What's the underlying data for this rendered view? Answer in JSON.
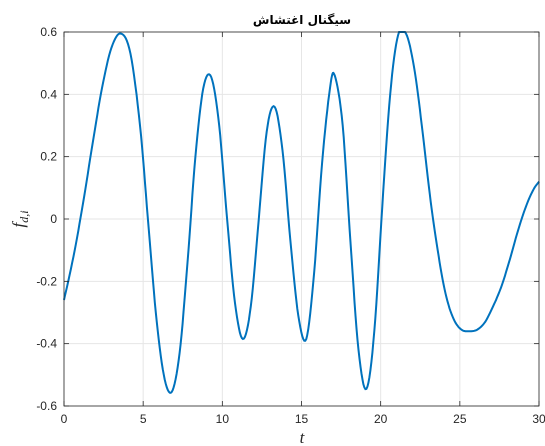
{
  "chart_data": {
    "type": "line",
    "title": "سیگنال اغتشاش",
    "xlabel": "t",
    "ylabel": "f",
    "ylabel_subscript": "d,i",
    "xlim": [
      0,
      30
    ],
    "ylim": [
      -0.6,
      0.6
    ],
    "xticks": [
      0,
      5,
      10,
      15,
      20,
      25,
      30
    ],
    "xtick_labels": [
      "0",
      "5",
      "10",
      "15",
      "20",
      "25",
      "30"
    ],
    "yticks": [
      -0.6,
      -0.4,
      -0.2,
      0,
      0.2,
      0.4,
      0.6
    ],
    "ytick_labels": [
      "-0.6",
      "-0.4",
      "-0.2",
      "0",
      "0.2",
      "0.4",
      "0.6"
    ],
    "grid": true,
    "series": [
      {
        "color": "#0072BD",
        "x": [
          0,
          0.6,
          1.2,
          1.8,
          2.4,
          3.0,
          3.6,
          4.2,
          4.8,
          5.3,
          5.8,
          6.3,
          6.8,
          7.3,
          7.8,
          8.3,
          8.8,
          9.3,
          9.8,
          10.3,
          10.8,
          11.3,
          11.8,
          12.3,
          12.8,
          13.3,
          13.8,
          14.3,
          14.8,
          15.3,
          15.8,
          16.3,
          16.8,
          17.1,
          17.6,
          18.1,
          18.6,
          19.1,
          19.6,
          20.1,
          20.6,
          21.1,
          21.6,
          22.1,
          22.6,
          23.1,
          23.6,
          24.1,
          24.6,
          25.1,
          25.6,
          26.1,
          26.6,
          27.1,
          27.6,
          28.1,
          28.6,
          29.1,
          29.6,
          30.0
        ],
        "values": [
          -0.26,
          -0.12,
          0.05,
          0.24,
          0.42,
          0.55,
          0.595,
          0.53,
          0.3,
          0.0,
          -0.3,
          -0.5,
          -0.555,
          -0.43,
          -0.14,
          0.2,
          0.42,
          0.455,
          0.3,
          0.0,
          -0.27,
          -0.385,
          -0.28,
          0.0,
          0.28,
          0.36,
          0.22,
          -0.07,
          -0.31,
          -0.385,
          -0.17,
          0.18,
          0.42,
          0.46,
          0.3,
          -0.08,
          -0.42,
          -0.545,
          -0.36,
          0.04,
          0.4,
          0.59,
          0.595,
          0.49,
          0.3,
          0.08,
          -0.1,
          -0.24,
          -0.32,
          -0.355,
          -0.36,
          -0.355,
          -0.33,
          -0.28,
          -0.22,
          -0.14,
          -0.05,
          0.03,
          0.09,
          0.12
        ]
      }
    ]
  }
}
